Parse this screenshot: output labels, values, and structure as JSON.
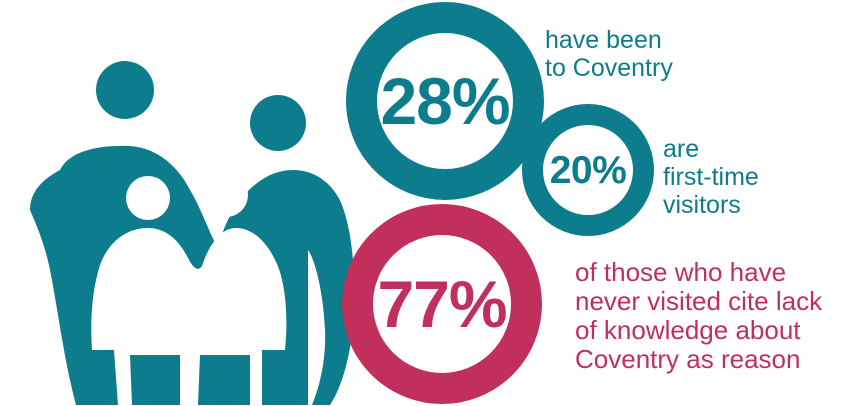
{
  "colors": {
    "teal": "#0d7c8c",
    "crimson": "#c0305a"
  },
  "illustration": {
    "icon": "family-icon"
  },
  "stats": {
    "been_to_coventry": {
      "value": "28%",
      "caption_lines": [
        "have been",
        "to Coventry"
      ]
    },
    "first_time_visitors": {
      "value": "20%",
      "caption_lines": [
        "are",
        "first-time",
        "visitors"
      ]
    },
    "never_visited_reason": {
      "value": "77%",
      "caption_lines": [
        "of those who have",
        "never visited cite lack",
        "of knowledge about",
        "Coventry as reason"
      ]
    }
  }
}
